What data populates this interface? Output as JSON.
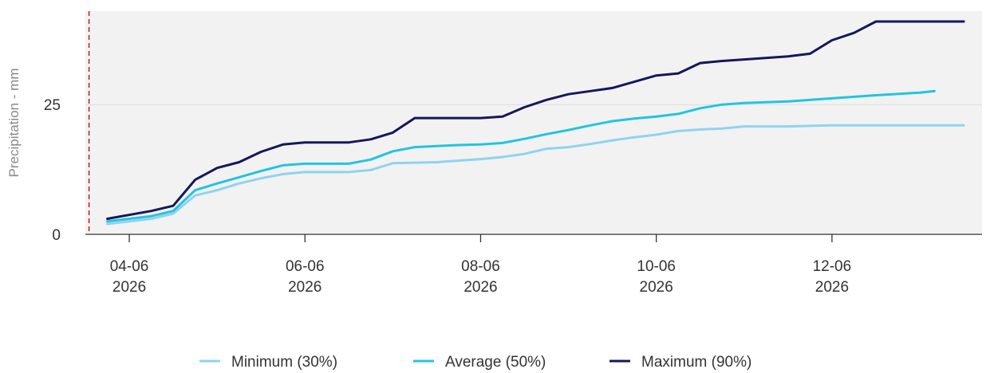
{
  "chart_data": {
    "type": "line",
    "ylabel": "Precipitation - mm",
    "y_ticks": [
      0,
      25
    ],
    "ylim": [
      0,
      43
    ],
    "xlim": [
      "2026-06-03T12:00",
      "2026-06-13T17:00"
    ],
    "x_ticks": [
      {
        "date": "2026-06-04T00:00",
        "line1": "04-06",
        "line2": "2026"
      },
      {
        "date": "2026-06-06T00:00",
        "line1": "06-06",
        "line2": "2026"
      },
      {
        "date": "2026-06-08T00:00",
        "line1": "08-06",
        "line2": "2026"
      },
      {
        "date": "2026-06-10T00:00",
        "line1": "10-06",
        "line2": "2026"
      },
      {
        "date": "2026-06-12T00:00",
        "line1": "12-06",
        "line2": "2026"
      }
    ],
    "grid": "horizontal",
    "current_time_marker": "2026-06-03T13:00",
    "legend_position": "bottom-center",
    "series": [
      {
        "name": "Minimum (30%)",
        "color": "#8fd3f0",
        "points": [
          [
            "2026-06-03T18:00",
            2.0
          ],
          [
            "2026-06-04T06:00",
            3.0
          ],
          [
            "2026-06-04T12:00",
            4.0
          ],
          [
            "2026-06-04T18:00",
            7.5
          ],
          [
            "2026-06-05T00:00",
            8.5
          ],
          [
            "2026-06-05T06:00",
            9.8
          ],
          [
            "2026-06-05T12:00",
            10.8
          ],
          [
            "2026-06-05T18:00",
            11.6
          ],
          [
            "2026-06-06T00:00",
            12.0
          ],
          [
            "2026-06-06T06:00",
            12.0
          ],
          [
            "2026-06-06T12:00",
            12.0
          ],
          [
            "2026-06-06T18:00",
            12.4
          ],
          [
            "2026-06-07T00:00",
            13.7
          ],
          [
            "2026-06-07T06:00",
            13.8
          ],
          [
            "2026-06-07T12:00",
            13.9
          ],
          [
            "2026-06-07T18:00",
            14.2
          ],
          [
            "2026-06-08T00:00",
            14.5
          ],
          [
            "2026-06-08T06:00",
            14.9
          ],
          [
            "2026-06-08T12:00",
            15.5
          ],
          [
            "2026-06-08T18:00",
            16.5
          ],
          [
            "2026-06-09T00:00",
            16.8
          ],
          [
            "2026-06-09T06:00",
            17.4
          ],
          [
            "2026-06-09T12:00",
            18.1
          ],
          [
            "2026-06-09T18:00",
            18.7
          ],
          [
            "2026-06-10T00:00",
            19.2
          ],
          [
            "2026-06-10T06:00",
            19.9
          ],
          [
            "2026-06-10T12:00",
            20.2
          ],
          [
            "2026-06-10T18:00",
            20.4
          ],
          [
            "2026-06-11T00:00",
            20.8
          ],
          [
            "2026-06-11T12:00",
            20.8
          ],
          [
            "2026-06-12T00:00",
            21.0
          ],
          [
            "2026-06-12T12:00",
            21.0
          ],
          [
            "2026-06-13T00:00",
            21.0
          ],
          [
            "2026-06-13T12:00",
            21.0
          ]
        ]
      },
      {
        "name": "Average (50%)",
        "color": "#22c4e0",
        "points": [
          [
            "2026-06-03T18:00",
            2.5
          ],
          [
            "2026-06-04T06:00",
            3.5
          ],
          [
            "2026-06-04T12:00",
            4.5
          ],
          [
            "2026-06-04T18:00",
            8.5
          ],
          [
            "2026-06-05T00:00",
            9.8
          ],
          [
            "2026-06-05T06:00",
            11.0
          ],
          [
            "2026-06-05T12:00",
            12.2
          ],
          [
            "2026-06-05T18:00",
            13.3
          ],
          [
            "2026-06-06T00:00",
            13.6
          ],
          [
            "2026-06-06T06:00",
            13.6
          ],
          [
            "2026-06-06T12:00",
            13.6
          ],
          [
            "2026-06-06T18:00",
            14.4
          ],
          [
            "2026-06-07T00:00",
            16.0
          ],
          [
            "2026-06-07T06:00",
            16.8
          ],
          [
            "2026-06-07T12:00",
            17.0
          ],
          [
            "2026-06-07T18:00",
            17.2
          ],
          [
            "2026-06-08T00:00",
            17.3
          ],
          [
            "2026-06-08T06:00",
            17.6
          ],
          [
            "2026-06-08T12:00",
            18.4
          ],
          [
            "2026-06-08T18:00",
            19.3
          ],
          [
            "2026-06-09T00:00",
            20.1
          ],
          [
            "2026-06-09T06:00",
            21.0
          ],
          [
            "2026-06-09T12:00",
            21.8
          ],
          [
            "2026-06-09T18:00",
            22.3
          ],
          [
            "2026-06-10T00:00",
            22.7
          ],
          [
            "2026-06-10T06:00",
            23.2
          ],
          [
            "2026-06-10T12:00",
            24.3
          ],
          [
            "2026-06-10T18:00",
            25.0
          ],
          [
            "2026-06-11T00:00",
            25.3
          ],
          [
            "2026-06-11T12:00",
            25.6
          ],
          [
            "2026-06-12T00:00",
            26.2
          ],
          [
            "2026-06-12T12:00",
            26.8
          ],
          [
            "2026-06-13T00:00",
            27.3
          ],
          [
            "2026-06-13T04:00",
            27.6
          ]
        ]
      },
      {
        "name": "Maximum (90%)",
        "color": "#16175a",
        "points": [
          [
            "2026-06-03T18:00",
            3.0
          ],
          [
            "2026-06-04T06:00",
            4.5
          ],
          [
            "2026-06-04T12:00",
            5.5
          ],
          [
            "2026-06-04T18:00",
            10.5
          ],
          [
            "2026-06-05T00:00",
            12.8
          ],
          [
            "2026-06-05T06:00",
            13.9
          ],
          [
            "2026-06-05T12:00",
            15.9
          ],
          [
            "2026-06-05T18:00",
            17.3
          ],
          [
            "2026-06-06T00:00",
            17.7
          ],
          [
            "2026-06-06T06:00",
            17.7
          ],
          [
            "2026-06-06T12:00",
            17.7
          ],
          [
            "2026-06-06T18:00",
            18.3
          ],
          [
            "2026-06-07T00:00",
            19.6
          ],
          [
            "2026-06-07T06:00",
            22.4
          ],
          [
            "2026-06-07T12:00",
            22.4
          ],
          [
            "2026-06-07T18:00",
            22.4
          ],
          [
            "2026-06-08T00:00",
            22.4
          ],
          [
            "2026-06-08T06:00",
            22.7
          ],
          [
            "2026-06-08T12:00",
            24.5
          ],
          [
            "2026-06-08T18:00",
            25.9
          ],
          [
            "2026-06-09T00:00",
            27.0
          ],
          [
            "2026-06-09T06:00",
            27.6
          ],
          [
            "2026-06-09T12:00",
            28.2
          ],
          [
            "2026-06-09T18:00",
            29.4
          ],
          [
            "2026-06-10T00:00",
            30.6
          ],
          [
            "2026-06-10T06:00",
            31.0
          ],
          [
            "2026-06-10T12:00",
            33.0
          ],
          [
            "2026-06-10T18:00",
            33.4
          ],
          [
            "2026-06-11T00:00",
            33.7
          ],
          [
            "2026-06-11T12:00",
            34.3
          ],
          [
            "2026-06-11T18:00",
            34.8
          ],
          [
            "2026-06-12T00:00",
            37.4
          ],
          [
            "2026-06-12T06:00",
            38.8
          ],
          [
            "2026-06-12T12:00",
            41.0
          ],
          [
            "2026-06-13T00:00",
            41.0
          ],
          [
            "2026-06-13T12:00",
            41.0
          ]
        ]
      }
    ]
  }
}
